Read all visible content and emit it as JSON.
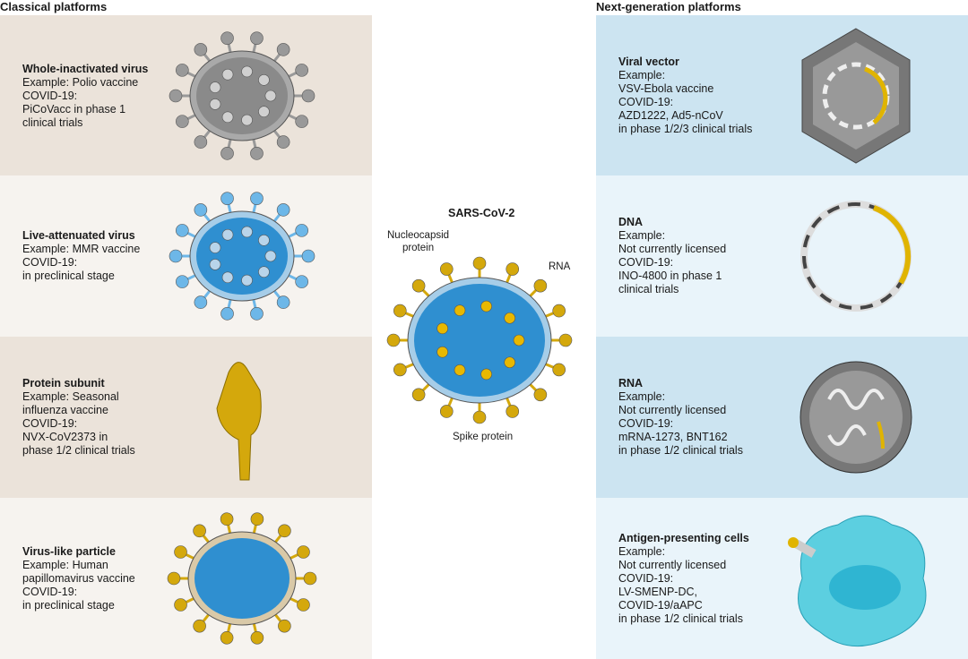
{
  "headers": {
    "classical": "Classical platforms",
    "next": "Next-generation platforms"
  },
  "colors": {
    "classical_dark": "#ebe3da",
    "classical_light": "#f6f3ef",
    "next_dark": "#cce4f1",
    "next_light": "#e9f4fa",
    "gold": "#d4a80c",
    "blue": "#2f8fd0"
  },
  "classical": [
    {
      "title": "Whole-inactivated virus",
      "lines": [
        "Example: Polio vaccine",
        "COVID-19:",
        "PiCoVacc in phase 1",
        "clinical trials"
      ]
    },
    {
      "title": "Live-attenuated virus",
      "lines": [
        "Example: MMR vaccine",
        "COVID-19:",
        "in preclinical stage"
      ]
    },
    {
      "title": "Protein subunit",
      "lines": [
        "Example: Seasonal",
        "influenza vaccine",
        "COVID-19:",
        "NVX-CoV2373 in",
        "phase 1/2 clinical trials"
      ]
    },
    {
      "title": "Virus-like particle",
      "lines": [
        "Example: Human",
        "papillomavirus vaccine",
        "COVID-19:",
        "in preclinical stage"
      ]
    }
  ],
  "next": [
    {
      "title": "Viral vector",
      "lines": [
        "Example:",
        "VSV-Ebola vaccine",
        "COVID-19:",
        "AZD1222, Ad5-nCoV",
        "in phase 1/2/3 clinical trials"
      ]
    },
    {
      "title": "DNA",
      "lines": [
        "Example:",
        "Not currently licensed",
        "COVID-19:",
        "INO-4800 in phase 1",
        "clinical trials"
      ]
    },
    {
      "title": "RNA",
      "lines": [
        "Example:",
        "Not currently licensed",
        "COVID-19:",
        "mRNA-1273, BNT162",
        "in phase 1/2 clinical trials"
      ]
    },
    {
      "title": "Antigen-presenting cells",
      "lines": [
        "Example:",
        "Not currently licensed",
        "COVID-19:",
        "LV-SMENP-DC,",
        "COVID-19/aAPC",
        "in phase 1/2 clinical trials"
      ]
    }
  ],
  "center": {
    "title": "SARS-CoV-2",
    "nucleocapsid": [
      "Nucleocapsid",
      "protein"
    ],
    "rna": "RNA",
    "spike": "Spike protein"
  }
}
